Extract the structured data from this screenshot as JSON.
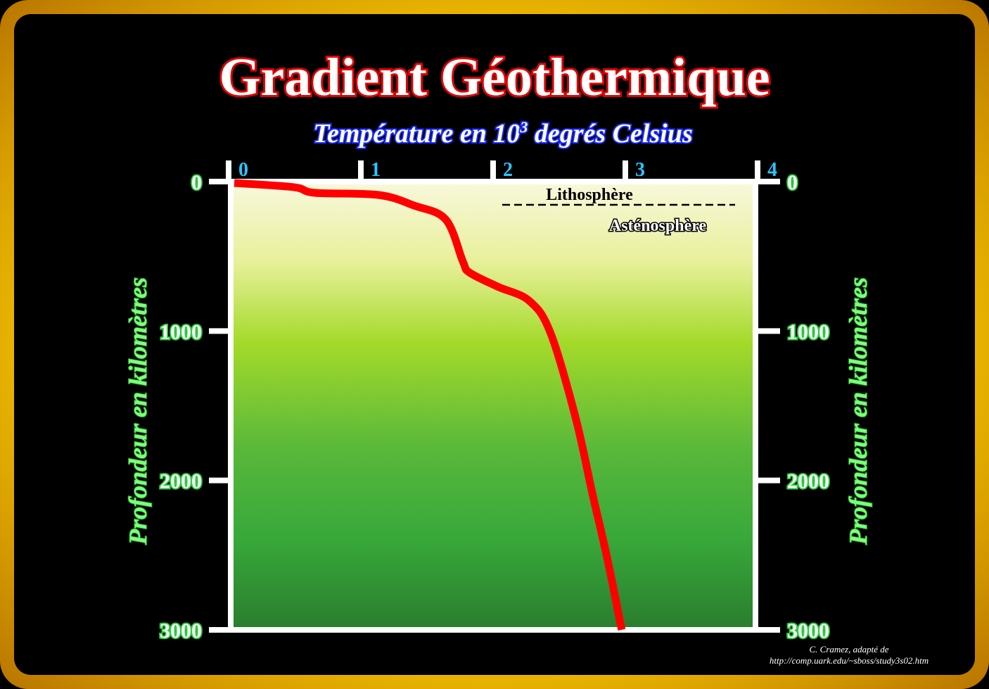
{
  "chart_data": {
    "type": "line",
    "title": "Gradient Géothermique",
    "xlabel": "Température en 10³ degrés Celsius",
    "xlabel_base": "Température en 10",
    "xlabel_exp": "3",
    "xlabel_rest": " degrés Celsius",
    "ylabel": "Profondeur en kilomètres",
    "xlim": [
      0,
      4
    ],
    "ylim": [
      0,
      3000
    ],
    "y_inverted": true,
    "x_ticks": [
      "0",
      "1",
      "2",
      "3",
      "4"
    ],
    "y_ticks": [
      "0",
      "1000",
      "2000",
      "3000"
    ],
    "grid": false,
    "series": [
      {
        "color": "#ff0000",
        "x": [
          0,
          0.45,
          0.61,
          1.09,
          1.36,
          1.6,
          1.73,
          1.78,
          1.99,
          2.23,
          2.39,
          2.58,
          2.71,
          2.82,
          2.93
        ],
        "y": [
          0,
          28,
          66,
          80,
          151,
          245,
          528,
          600,
          693,
          788,
          1000,
          1566,
          2085,
          2509,
          2990
        ]
      }
    ],
    "annotations": {
      "upper": "Lithosphère",
      "lower": "Asténosphère"
    },
    "colors": {
      "title_outline": "#e00000",
      "curve": "#ff0000",
      "background_top": "#f8f8dc",
      "background_bottom": "#2a7d2e",
      "frame": "#f5c400"
    }
  },
  "credit": {
    "line1": "C. Cramez, adapté de",
    "line2": "http://comp.uark.edu/~sboss/study3s02.htm"
  }
}
